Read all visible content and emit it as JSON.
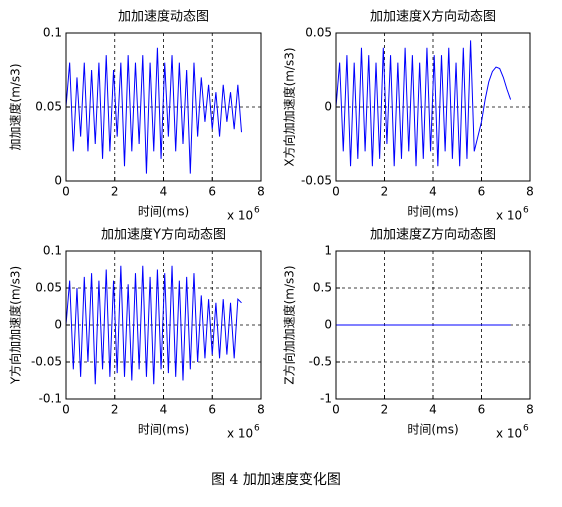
{
  "chart_data": [
    {
      "type": "line",
      "title": "加加速度动态图",
      "x_label": "时间(ms)",
      "y_label": "加加速度(m/s3)",
      "x_multiplier": "x 10",
      "x_exponent": "6",
      "color": "#0000ff",
      "grid": true,
      "xlim": [
        0,
        8
      ],
      "xticks": [
        0,
        2,
        4,
        6,
        8
      ],
      "ylim": [
        0,
        0.1
      ],
      "yticks": [
        0,
        0.05,
        0.1
      ],
      "x": [
        0,
        0.15,
        0.3,
        0.45,
        0.6,
        0.75,
        0.9,
        1.05,
        1.2,
        1.35,
        1.5,
        1.65,
        1.8,
        1.95,
        2.1,
        2.25,
        2.4,
        2.55,
        2.7,
        2.85,
        3,
        3.15,
        3.3,
        3.45,
        3.6,
        3.75,
        3.9,
        4.05,
        4.2,
        4.35,
        4.5,
        4.65,
        4.8,
        4.95,
        5.1,
        5.25,
        5.4,
        5.55,
        5.7,
        5.85,
        6,
        6.15,
        6.3,
        6.45,
        6.6,
        6.75,
        6.9,
        7.05,
        7.2
      ],
      "values": [
        0.05,
        0.08,
        0.02,
        0.07,
        0.03,
        0.08,
        0.02,
        0.075,
        0.025,
        0.08,
        0.015,
        0.085,
        0.02,
        0.075,
        0.03,
        0.08,
        0.01,
        0.085,
        0.02,
        0.08,
        0.025,
        0.085,
        0.005,
        0.08,
        0.02,
        0.09,
        0.015,
        0.08,
        0.03,
        0.085,
        0.02,
        0.08,
        0.025,
        0.075,
        0.005,
        0.08,
        0.03,
        0.07,
        0.04,
        0.065,
        0.035,
        0.06,
        0.03,
        0.065,
        0.04,
        0.06,
        0.035,
        0.065,
        0.033
      ]
    },
    {
      "type": "line",
      "title": "加加速度X方向动态图",
      "x_label": "时间(ms)",
      "y_label": "X方向加加速度(m/s3)",
      "x_multiplier": "x 10",
      "x_exponent": "6",
      "color": "#0000ff",
      "grid": true,
      "xlim": [
        0,
        8
      ],
      "xticks": [
        0,
        2,
        4,
        6,
        8
      ],
      "ylim": [
        -0.05,
        0.05
      ],
      "yticks": [
        -0.05,
        0,
        0.05
      ],
      "x": [
        0,
        0.15,
        0.3,
        0.45,
        0.6,
        0.75,
        0.9,
        1.05,
        1.2,
        1.35,
        1.5,
        1.65,
        1.8,
        1.95,
        2.1,
        2.25,
        2.4,
        2.55,
        2.7,
        2.85,
        3,
        3.15,
        3.3,
        3.45,
        3.6,
        3.75,
        3.9,
        4.05,
        4.2,
        4.35,
        4.5,
        4.65,
        4.8,
        4.95,
        5.1,
        5.25,
        5.4,
        5.55,
        5.7,
        5.85,
        6,
        6.15,
        6.3,
        6.45,
        6.6,
        6.75,
        6.9,
        7.05,
        7.2
      ],
      "values": [
        0,
        0.03,
        -0.03,
        0.035,
        -0.04,
        0.03,
        -0.035,
        0.04,
        -0.03,
        0.035,
        -0.04,
        0.03,
        -0.035,
        0.04,
        -0.025,
        0.035,
        -0.04,
        0.03,
        -0.035,
        0.04,
        -0.03,
        0.035,
        -0.04,
        0.03,
        -0.035,
        0.04,
        -0.03,
        0.035,
        -0.04,
        0.035,
        -0.03,
        0.04,
        -0.035,
        0.03,
        -0.04,
        0.04,
        -0.035,
        0.045,
        -0.03,
        -0.02,
        -0.01,
        0.005,
        0.017,
        0.024,
        0.027,
        0.026,
        0.02,
        0.012,
        0.005
      ]
    },
    {
      "type": "line",
      "title": "加加速度Y方向动态图",
      "x_label": "时间(ms)",
      "y_label": "Y方向加加速度(m/s3)",
      "x_multiplier": "x 10",
      "x_exponent": "6",
      "color": "#0000ff",
      "grid": true,
      "xlim": [
        0,
        8
      ],
      "xticks": [
        0,
        2,
        4,
        6,
        8
      ],
      "ylim": [
        -0.1,
        0.1
      ],
      "yticks": [
        -0.1,
        -0.05,
        0,
        0.05,
        0.1
      ],
      "x": [
        0,
        0.15,
        0.3,
        0.45,
        0.6,
        0.75,
        0.9,
        1.05,
        1.2,
        1.35,
        1.5,
        1.65,
        1.8,
        1.95,
        2.1,
        2.25,
        2.4,
        2.55,
        2.7,
        2.85,
        3,
        3.15,
        3.3,
        3.45,
        3.6,
        3.75,
        3.9,
        4.05,
        4.2,
        4.35,
        4.5,
        4.65,
        4.8,
        4.95,
        5.1,
        5.25,
        5.4,
        5.55,
        5.7,
        5.85,
        6,
        6.15,
        6.3,
        6.45,
        6.6,
        6.75,
        6.9,
        7.05,
        7.2
      ],
      "values": [
        0,
        0.06,
        -0.06,
        0.05,
        -0.07,
        0.065,
        -0.05,
        0.07,
        -0.08,
        0.06,
        -0.06,
        0.075,
        -0.07,
        0.06,
        -0.065,
        0.08,
        -0.07,
        0.055,
        -0.075,
        0.07,
        -0.06,
        0.08,
        -0.07,
        0.065,
        -0.08,
        0.075,
        -0.06,
        0.07,
        -0.065,
        0.08,
        -0.07,
        0.06,
        -0.075,
        0.065,
        -0.06,
        0.07,
        -0.05,
        0.04,
        -0.045,
        0.035,
        -0.04,
        0.03,
        -0.045,
        0.035,
        -0.04,
        0.03,
        -0.045,
        0.035,
        0.03
      ]
    },
    {
      "type": "line",
      "title": "加加速度Z方向动态图",
      "x_label": "时间(ms)",
      "y_label": "Z方向加加速度(m/s3)",
      "x_multiplier": "x 10",
      "x_exponent": "6",
      "color": "#0000ff",
      "grid": true,
      "xlim": [
        0,
        8
      ],
      "xticks": [
        0,
        2,
        4,
        6,
        8
      ],
      "ylim": [
        -1,
        1
      ],
      "yticks": [
        -1,
        -0.5,
        0,
        0.5,
        1
      ],
      "x": [
        0,
        7.2
      ],
      "values": [
        0,
        0
      ]
    }
  ],
  "caption": "图 4  加加速度变化图"
}
